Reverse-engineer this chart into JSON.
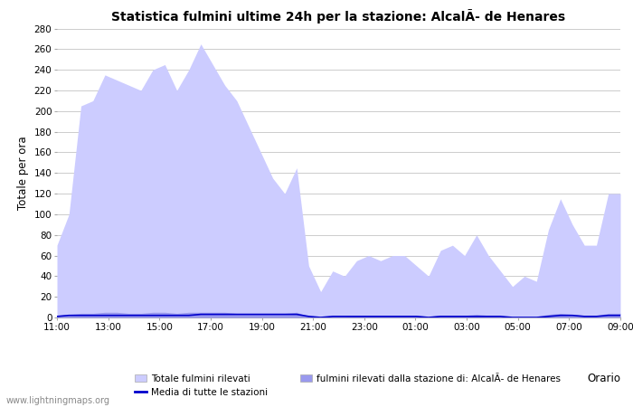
{
  "title": "Statistica fulmini ultime 24h per la stazione: AlcalÃ­ de Henares",
  "ylabel": "Totale per ora",
  "xlabel_label": "Orario",
  "xlim_labels": [
    "11:00",
    "13:00",
    "15:00",
    "17:00",
    "19:00",
    "21:00",
    "23:00",
    "01:00",
    "03:00",
    "05:00",
    "07:00",
    "09:00"
  ],
  "ylim": [
    0,
    280
  ],
  "yticks": [
    0,
    20,
    40,
    60,
    80,
    100,
    120,
    140,
    160,
    180,
    200,
    220,
    240,
    260,
    280
  ],
  "background_color": "#ffffff",
  "grid_color": "#cccccc",
  "fill_color_light": "#ccccff",
  "fill_color_dark": "#9999ee",
  "line_color_avg": "#0000cc",
  "watermark": "www.lightningmaps.org",
  "legend_label_1": "Totale fulmini rilevati",
  "legend_label_2": "Media di tutte le stazioni",
  "legend_label_3": "fulmini rilevati dalla stazione di: AlcalÃ­ de Henares",
  "x_values": [
    0,
    1,
    2,
    3,
    4,
    5,
    6,
    7,
    8,
    9,
    10,
    11,
    12,
    13,
    14,
    15,
    16,
    17,
    18,
    19,
    20,
    21,
    22,
    23,
    24,
    25,
    26,
    27,
    28,
    29,
    30,
    31,
    32,
    33,
    34,
    35,
    36,
    37,
    38,
    39,
    40,
    41,
    42,
    43,
    44,
    45,
    46,
    47
  ],
  "total_values": [
    70,
    100,
    205,
    210,
    235,
    230,
    225,
    220,
    240,
    245,
    220,
    240,
    265,
    245,
    225,
    210,
    185,
    160,
    135,
    120,
    145,
    50,
    25,
    45,
    40,
    55,
    60,
    55,
    60,
    60,
    50,
    40,
    65,
    70,
    60,
    80,
    60,
    45,
    30,
    40,
    35,
    85,
    115,
    90,
    70,
    70,
    120,
    120
  ],
  "station_values": [
    2,
    3,
    4,
    4,
    5,
    5,
    4,
    4,
    5,
    5,
    4,
    5,
    5,
    5,
    5,
    4,
    4,
    4,
    4,
    4,
    5,
    1,
    1,
    1,
    1,
    2,
    2,
    2,
    2,
    2,
    2,
    1,
    2,
    2,
    2,
    3,
    2,
    1,
    1,
    1,
    1,
    3,
    4,
    3,
    2,
    2,
    4,
    4
  ],
  "avg_values": [
    1,
    2,
    2,
    2,
    2,
    2,
    2,
    2,
    2,
    2,
    2,
    2,
    3,
    3,
    3,
    3,
    3,
    3,
    3,
    3,
    3,
    1,
    0,
    1,
    1,
    1,
    1,
    1,
    1,
    1,
    1,
    0,
    1,
    1,
    1,
    1,
    1,
    1,
    0,
    0,
    0,
    1,
    2,
    2,
    1,
    1,
    2,
    2
  ]
}
